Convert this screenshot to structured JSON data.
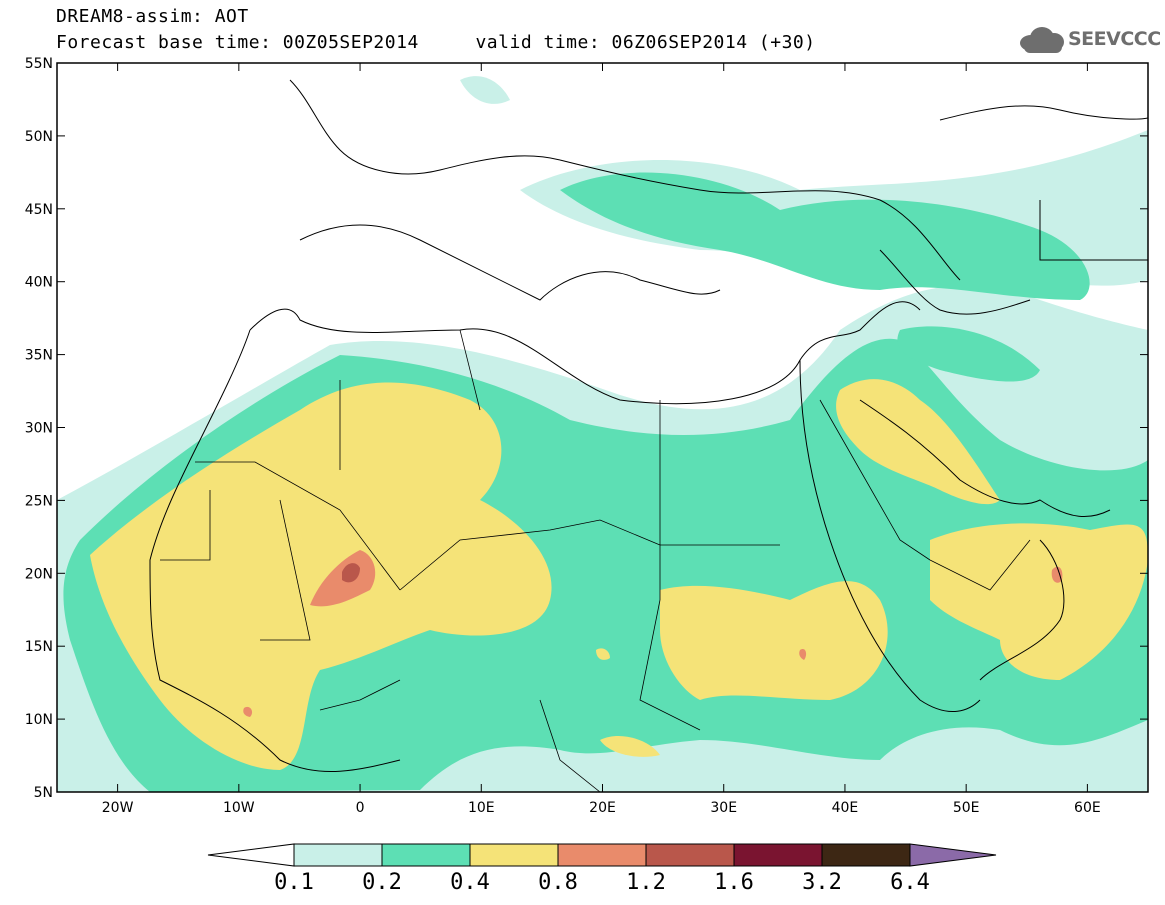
{
  "title_line1": "DREAM8-assim: AOT",
  "title_line2": "Forecast base time: 00Z05SEP2014     valid time: 06Z06SEP2014 (+30)",
  "logo_text": "SEEVCCC",
  "axes": {
    "lat_labels": [
      "55N",
      "50N",
      "45N",
      "40N",
      "35N",
      "30N",
      "25N",
      "20N",
      "15N",
      "10N",
      "5N"
    ],
    "lat_values": [
      55,
      50,
      45,
      40,
      35,
      30,
      25,
      20,
      15,
      10,
      5
    ],
    "lon_labels": [
      "20W",
      "10W",
      "0",
      "10E",
      "20E",
      "30E",
      "40E",
      "50E",
      "60E"
    ],
    "lon_values": [
      -20,
      -10,
      0,
      10,
      20,
      30,
      40,
      50,
      60
    ],
    "lon_range": [
      -25,
      65
    ],
    "lat_range": [
      5,
      55
    ]
  },
  "legend": {
    "boundaries": [
      "0.1",
      "0.2",
      "0.4",
      "0.8",
      "1.2",
      "1.6",
      "3.2",
      "6.4"
    ],
    "colors": [
      "#ffffff",
      "#c9f0e8",
      "#5ddfb4",
      "#f5e378",
      "#e98b6b",
      "#b9574b",
      "#7a1430",
      "#3d2714",
      "#8b6aa8"
    ]
  },
  "fields": {
    "c1": "#c9f0e8",
    "c2": "#5ddfb4",
    "c3": "#f5e378",
    "c4": "#e98b6b",
    "c5": "#b9574b"
  }
}
